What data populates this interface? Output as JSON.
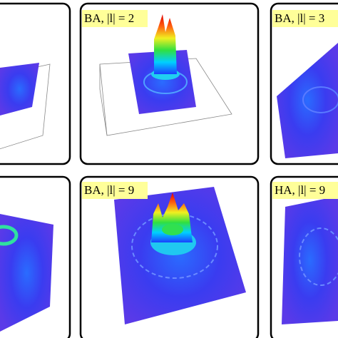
{
  "panels": [
    {
      "label": "BA, |l| = 2"
    },
    {
      "label": "BA, |l| = 3"
    },
    {
      "label": "BA, |l| = 9"
    },
    {
      "label": "HA, |l| = 9"
    }
  ]
}
